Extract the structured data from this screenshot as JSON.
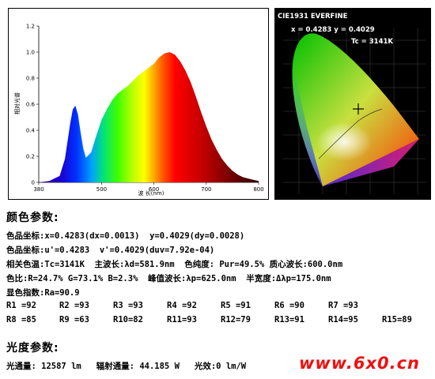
{
  "chart_data": [
    {
      "type": "area",
      "ylabel": "相对光谱",
      "xlabel": "波 长(nm)",
      "xlim": [
        380,
        800
      ],
      "ylim": [
        0,
        1.2
      ],
      "x_ticks": [
        "380",
        "500",
        "600",
        "700",
        "800"
      ],
      "y_ticks": [
        "0",
        "0.2",
        "0.4",
        "0.6",
        "0.8",
        "1.0",
        "1.2"
      ],
      "grid": false,
      "x": [
        380,
        400,
        420,
        430,
        440,
        445,
        450,
        455,
        460,
        465,
        470,
        480,
        490,
        500,
        510,
        520,
        530,
        540,
        550,
        560,
        570,
        580,
        590,
        600,
        610,
        620,
        630,
        640,
        650,
        660,
        670,
        680,
        690,
        700,
        710,
        720,
        730,
        740,
        750,
        760,
        770,
        780,
        790,
        800
      ],
      "y": [
        0,
        0.01,
        0.05,
        0.18,
        0.45,
        0.56,
        0.59,
        0.52,
        0.38,
        0.26,
        0.19,
        0.23,
        0.36,
        0.48,
        0.56,
        0.63,
        0.68,
        0.71,
        0.74,
        0.78,
        0.82,
        0.85,
        0.88,
        0.91,
        0.96,
        0.99,
        1.0,
        0.98,
        0.93,
        0.86,
        0.77,
        0.66,
        0.54,
        0.43,
        0.33,
        0.25,
        0.18,
        0.13,
        0.09,
        0.06,
        0.04,
        0.03,
        0.02,
        0.01
      ]
    },
    {
      "type": "scatter",
      "title": "CIE1931 EVERFINE",
      "annotations": [
        "x = 0.4283 y = 0.4029",
        "Tc = 3141K"
      ],
      "points": [
        {
          "x": 0.4283,
          "y": 0.4029
        }
      ]
    }
  ],
  "color_params": {
    "title": "颜色参数:",
    "lines": [
      "色品坐标:x=0.4283(dx=0.0013)  y=0.4029(dy=0.0028)",
      "色品坐标:u'=0.4283  v'=0.4029(duv=7.92e-04)",
      "相关色温:Tc=3141K  主波长:λd=581.9nm  色纯度: Pur=49.5% 质心波长:600.0nm",
      "色比:R=24.7% G=73.1% B=2.3%  峰值波长:λp=625.0nm  半宽度:Δλp=175.0nm",
      "显色指数:Ra=90.9"
    ],
    "ra_row1": [
      "R1 =92",
      "R2 =93",
      "R3 =93",
      "R4 =92",
      "R5 =91",
      "R6 =90",
      "R7 =93"
    ],
    "ra_row2": [
      "R8 =85",
      "R9 =63",
      "R10=82",
      "R11=93",
      "R12=79",
      "R13=91",
      "R14=95",
      "R15=89"
    ]
  },
  "photometric": {
    "title": "光度参数:",
    "line": "光通量: 12587 lm   辐射通量: 44.185 W   光效:0 lm/W"
  },
  "watermark": "www.6x0.cn"
}
